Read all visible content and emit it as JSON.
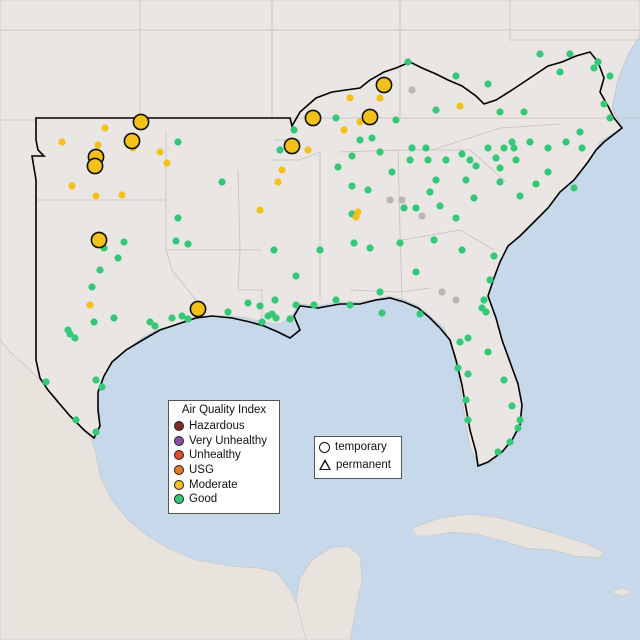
{
  "aqi_legend": {
    "title": "Air Quality Index",
    "items": [
      {
        "label": "Hazardous",
        "color": "#7e2b2b"
      },
      {
        "label": "Very Unhealthy",
        "color": "#8f4fa6"
      },
      {
        "label": "Unhealthy",
        "color": "#e04a2e"
      },
      {
        "label": "USG",
        "color": "#e6781e"
      },
      {
        "label": "Moderate",
        "color": "#f2c21b"
      },
      {
        "label": "Good",
        "color": "#34c878"
      }
    ]
  },
  "type_legend": {
    "items": [
      {
        "label": "temporary",
        "icon": "circle-icon"
      },
      {
        "label": "permanent",
        "icon": "triangle-icon"
      }
    ]
  },
  "colors": {
    "good": "#34c878",
    "moderate": "#f2c21b",
    "no_data": "#b8b8b8",
    "water": "#c4d6e8",
    "land": "#e9e6e3"
  }
}
